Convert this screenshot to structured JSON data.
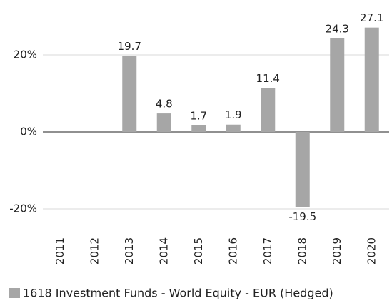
{
  "chart_data": {
    "type": "bar",
    "categories": [
      "2011",
      "2012",
      "2013",
      "2014",
      "2015",
      "2016",
      "2017",
      "2018",
      "2019",
      "2020"
    ],
    "series": [
      {
        "name": "1618 Investment Funds - World Equity - EUR (Hedged)",
        "color": "#a6a6a6",
        "values": [
          null,
          null,
          19.7,
          4.8,
          1.7,
          1.9,
          11.4,
          -19.5,
          24.3,
          27.1
        ]
      }
    ],
    "ylim": [
      -25,
      30
    ],
    "yticks": [
      {
        "value": -20,
        "label": "-20%"
      },
      {
        "value": 0,
        "label": "0%"
      },
      {
        "value": 20,
        "label": "20%"
      }
    ],
    "grid": true,
    "legend": "bottom"
  }
}
